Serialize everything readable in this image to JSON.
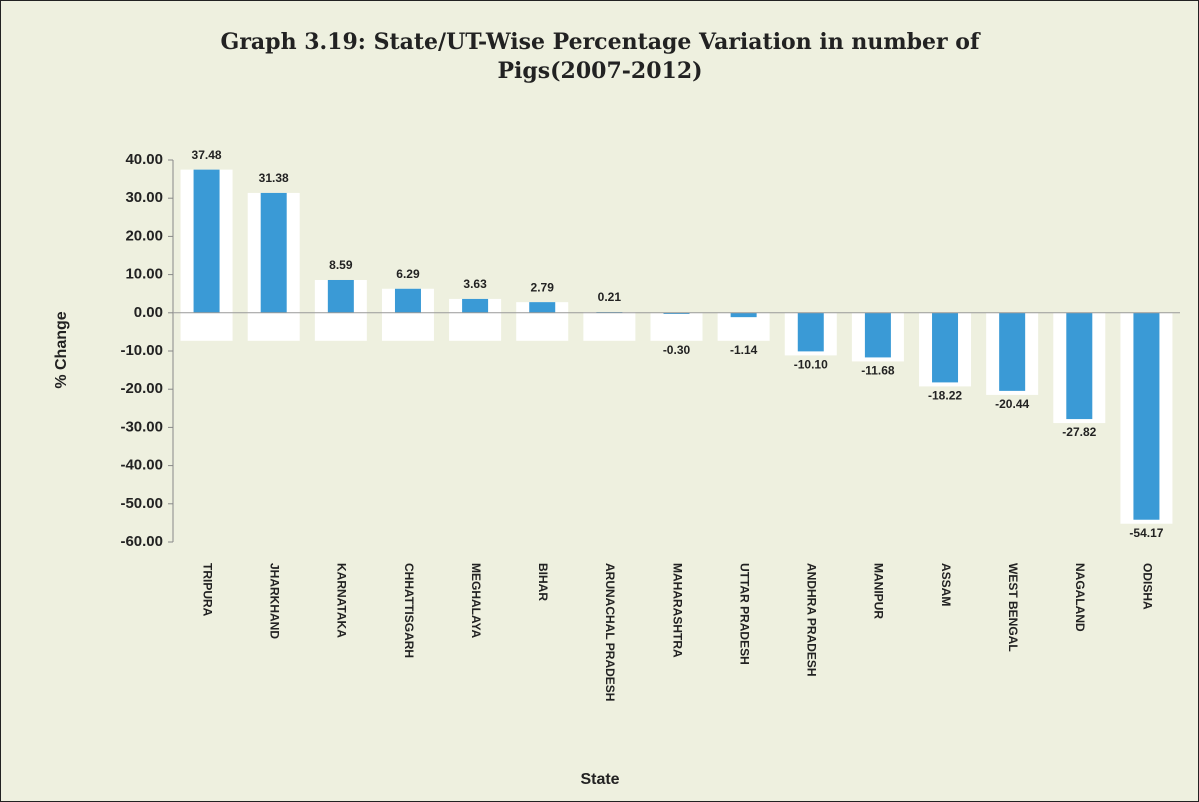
{
  "chart_data": {
    "type": "bar",
    "title": "Graph 3.19: State/UT-Wise Percentage Variation in number of Pigs(2007-2012)",
    "xlabel": "State",
    "ylabel": "% Change",
    "categories": [
      "TRIPURA",
      "JHARKHAND",
      "KARNATAKA",
      "CHHATTISGARH",
      "MEGHALAYA",
      "BIHAR",
      "ARUNACHAL PRADESH",
      "MAHARASHTRA",
      "UTTAR PRADESH",
      "ANDHRA PRADESH",
      "MANIPUR",
      "ASSAM",
      "WEST BENGAL",
      "NAGALAND",
      "ODISHA"
    ],
    "values": [
      37.48,
      31.38,
      8.59,
      6.29,
      3.63,
      2.79,
      0.21,
      -0.3,
      -1.14,
      -10.1,
      -11.68,
      -18.22,
      -20.44,
      -27.82,
      -54.17
    ],
    "value_labels": [
      "37.48",
      "31.38",
      "8.59",
      "6.29",
      "3.63",
      "2.79",
      "0.21",
      "-0.30",
      "-1.14",
      "-10.10",
      "-11.68",
      "-18.22",
      "-20.44",
      "-27.82",
      "-54.17"
    ],
    "color": "#3a9ad6",
    "ylim": [
      -60,
      40
    ],
    "yticks": [
      {
        "value": 40,
        "label": "40.00"
      },
      {
        "value": 30,
        "label": "30.00"
      },
      {
        "value": 20,
        "label": "20.00"
      },
      {
        "value": 10,
        "label": "10.00"
      },
      {
        "value": 0,
        "label": "0.00"
      },
      {
        "value": -10,
        "label": "-10.00"
      },
      {
        "value": -20,
        "label": "-20.00"
      },
      {
        "value": -30,
        "label": "-30.00"
      },
      {
        "value": -40,
        "label": "-40.00"
      },
      {
        "value": -50,
        "label": "-50.00"
      },
      {
        "value": -60,
        "label": "-60.00"
      }
    ],
    "grid": false
  }
}
